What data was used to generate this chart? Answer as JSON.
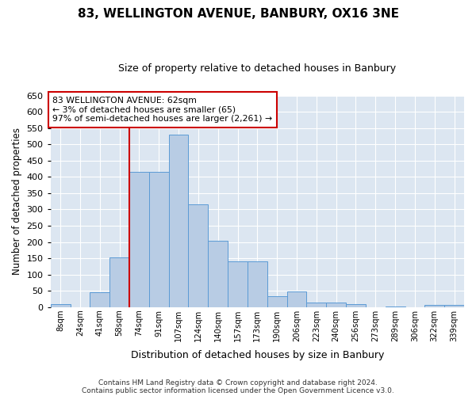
{
  "title": "83, WELLINGTON AVENUE, BANBURY, OX16 3NE",
  "subtitle": "Size of property relative to detached houses in Banbury",
  "xlabel": "Distribution of detached houses by size in Banbury",
  "ylabel": "Number of detached properties",
  "categories": [
    "8sqm",
    "24sqm",
    "41sqm",
    "58sqm",
    "74sqm",
    "91sqm",
    "107sqm",
    "124sqm",
    "140sqm",
    "157sqm",
    "173sqm",
    "190sqm",
    "206sqm",
    "223sqm",
    "240sqm",
    "256sqm",
    "273sqm",
    "289sqm",
    "306sqm",
    "322sqm",
    "339sqm"
  ],
  "values": [
    8,
    0,
    45,
    152,
    415,
    415,
    530,
    315,
    203,
    140,
    140,
    34,
    48,
    15,
    13,
    8,
    0,
    3,
    0,
    7,
    7
  ],
  "bar_color": "#b8cce4",
  "bar_edge_color": "#5b9bd5",
  "background_color": "#dce6f1",
  "grid_color": "#ffffff",
  "vline_x_index": 3.5,
  "annotation_text": "83 WELLINGTON AVENUE: 62sqm\n← 3% of detached houses are smaller (65)\n97% of semi-detached houses are larger (2,261) →",
  "annotation_box_color": "#ffffff",
  "annotation_box_edge": "#cc0000",
  "vline_color": "#cc0000",
  "ylim": [
    0,
    650
  ],
  "yticks": [
    0,
    50,
    100,
    150,
    200,
    250,
    300,
    350,
    400,
    450,
    500,
    550,
    600,
    650
  ],
  "footnote1": "Contains HM Land Registry data © Crown copyright and database right 2024.",
  "footnote2": "Contains public sector information licensed under the Open Government Licence v3.0."
}
